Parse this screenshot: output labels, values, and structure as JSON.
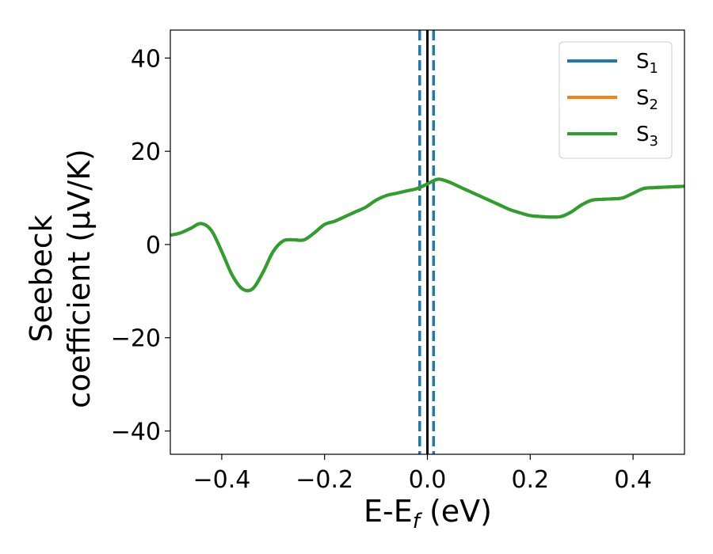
{
  "chart_data": {
    "type": "line",
    "xlabel": "E-E",
    "xlabel_sub": "f",
    "xlabel_unit": " (eV)",
    "ylabel_line1": "Seebeck",
    "ylabel_line2": "coefficient  (μV/K)",
    "xlim": [
      -0.5,
      0.5
    ],
    "ylim": [
      -45,
      46
    ],
    "xticks": [
      -0.4,
      -0.2,
      0.0,
      0.2,
      0.4
    ],
    "xtick_labels": [
      "−0.4",
      "−0.2",
      "0.0",
      "0.2",
      "0.4"
    ],
    "yticks": [
      -40,
      -20,
      0,
      20,
      40
    ],
    "ytick_labels": [
      "−40",
      "−20",
      "0",
      "20",
      "40"
    ],
    "grid": false,
    "legend_position": "top-right",
    "vertical_lines": [
      {
        "x": -0.015,
        "style": "dashed",
        "color": "#1f77b4"
      },
      {
        "x": 0.0,
        "style": "solid",
        "color": "#000000"
      },
      {
        "x": 0.012,
        "style": "dashed",
        "color": "#1f77b4"
      }
    ],
    "series": [
      {
        "name": "S",
        "sub": "1",
        "color": "#1f77b4",
        "x": [
          -0.5,
          -0.48,
          -0.46,
          -0.44,
          -0.42,
          -0.4,
          -0.38,
          -0.36,
          -0.34,
          -0.32,
          -0.3,
          -0.28,
          -0.26,
          -0.24,
          -0.22,
          -0.2,
          -0.18,
          -0.16,
          -0.14,
          -0.12,
          -0.1,
          -0.08,
          -0.06,
          -0.04,
          -0.02,
          0.0,
          0.02,
          0.04,
          0.06,
          0.08,
          0.1,
          0.12,
          0.14,
          0.16,
          0.18,
          0.2,
          0.22,
          0.24,
          0.26,
          0.28,
          0.3,
          0.32,
          0.34,
          0.36,
          0.38,
          0.4,
          0.42,
          0.44,
          0.46,
          0.48,
          0.5
        ],
        "y": [
          2.0,
          2.5,
          3.5,
          4.5,
          3.0,
          -1.5,
          -6.5,
          -9.5,
          -9.5,
          -6.0,
          -1.5,
          0.8,
          1.0,
          1.0,
          2.5,
          4.3,
          5.0,
          6.0,
          7.0,
          8.0,
          9.5,
          10.5,
          11.0,
          11.5,
          12.0,
          13.0,
          14.0,
          13.5,
          12.5,
          11.5,
          10.5,
          9.5,
          8.5,
          7.5,
          6.8,
          6.2,
          6.0,
          5.9,
          6.0,
          7.0,
          8.5,
          9.5,
          9.7,
          9.8,
          10.0,
          11.0,
          12.0,
          12.2,
          12.3,
          12.4,
          12.5
        ]
      },
      {
        "name": "S",
        "sub": "2",
        "color": "#ff7f0e",
        "x": [
          -0.5,
          -0.48,
          -0.46,
          -0.44,
          -0.42,
          -0.4,
          -0.38,
          -0.36,
          -0.34,
          -0.32,
          -0.3,
          -0.28,
          -0.26,
          -0.24,
          -0.22,
          -0.2,
          -0.18,
          -0.16,
          -0.14,
          -0.12,
          -0.1,
          -0.08,
          -0.06,
          -0.04,
          -0.02,
          0.0,
          0.02,
          0.04,
          0.06,
          0.08,
          0.1,
          0.12,
          0.14,
          0.16,
          0.18,
          0.2,
          0.22,
          0.24,
          0.26,
          0.28,
          0.3,
          0.32,
          0.34,
          0.36,
          0.38,
          0.4,
          0.42,
          0.44,
          0.46,
          0.48,
          0.5
        ],
        "y": [
          2.0,
          2.5,
          3.5,
          4.5,
          3.0,
          -1.5,
          -6.5,
          -9.5,
          -9.5,
          -6.0,
          -1.5,
          0.8,
          1.0,
          1.0,
          2.5,
          4.3,
          5.0,
          6.0,
          7.0,
          8.0,
          9.5,
          10.5,
          11.0,
          11.5,
          12.0,
          13.0,
          14.0,
          13.5,
          12.5,
          11.5,
          10.5,
          9.5,
          8.5,
          7.5,
          6.8,
          6.2,
          6.0,
          5.9,
          6.0,
          7.0,
          8.5,
          9.5,
          9.7,
          9.8,
          10.0,
          11.0,
          12.0,
          12.2,
          12.3,
          12.4,
          12.5
        ]
      },
      {
        "name": "S",
        "sub": "3",
        "color": "#2ca02c",
        "x": [
          -0.5,
          -0.48,
          -0.46,
          -0.44,
          -0.42,
          -0.4,
          -0.38,
          -0.36,
          -0.34,
          -0.32,
          -0.3,
          -0.28,
          -0.26,
          -0.24,
          -0.22,
          -0.2,
          -0.18,
          -0.16,
          -0.14,
          -0.12,
          -0.1,
          -0.08,
          -0.06,
          -0.04,
          -0.02,
          0.0,
          0.02,
          0.04,
          0.06,
          0.08,
          0.1,
          0.12,
          0.14,
          0.16,
          0.18,
          0.2,
          0.22,
          0.24,
          0.26,
          0.28,
          0.3,
          0.32,
          0.34,
          0.36,
          0.38,
          0.4,
          0.42,
          0.44,
          0.46,
          0.48,
          0.5
        ],
        "y": [
          2.0,
          2.5,
          3.5,
          4.5,
          3.0,
          -1.5,
          -6.5,
          -9.5,
          -9.5,
          -6.0,
          -1.5,
          0.8,
          1.0,
          1.0,
          2.5,
          4.3,
          5.0,
          6.0,
          7.0,
          8.0,
          9.5,
          10.5,
          11.0,
          11.5,
          12.0,
          13.0,
          14.0,
          13.5,
          12.5,
          11.5,
          10.5,
          9.5,
          8.5,
          7.5,
          6.8,
          6.2,
          6.0,
          5.9,
          6.0,
          7.0,
          8.5,
          9.5,
          9.7,
          9.8,
          10.0,
          11.0,
          12.0,
          12.2,
          12.3,
          12.4,
          12.5
        ]
      }
    ]
  }
}
